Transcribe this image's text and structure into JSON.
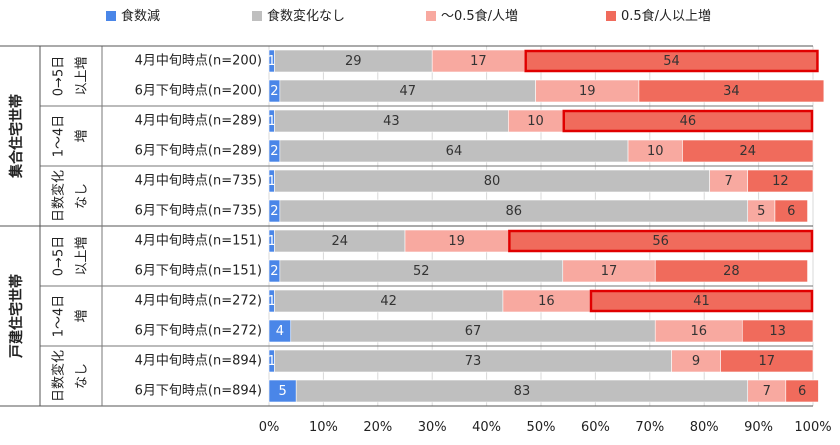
{
  "chart_data": {
    "type": "bar",
    "stacked": true,
    "orientation": "horizontal",
    "legend_position": "top",
    "xlim": [
      0,
      100
    ],
    "xticks": [
      "0%",
      "10%",
      "20%",
      "30%",
      "40%",
      "50%",
      "60%",
      "70%",
      "80%",
      "90%",
      "100%"
    ],
    "series": [
      {
        "name": "食数減",
        "color": "#4a86e8"
      },
      {
        "name": "食数変化なし",
        "color": "#bfbfbf"
      },
      {
        "name": "～0.5食/人増",
        "color": "#f8a9a0"
      },
      {
        "name": "0.5食/人以上増",
        "color": "#f06b5c"
      }
    ],
    "groups": [
      {
        "label": "集合住宅世帯",
        "subgroups": [
          {
            "label_lines": [
              "0→5日",
              "以上増"
            ],
            "rows": [
              0,
              1
            ]
          },
          {
            "label_lines": [
              "1～4日",
              "増"
            ],
            "rows": [
              2,
              3
            ]
          },
          {
            "label_lines": [
              "日数変化",
              "なし"
            ],
            "rows": [
              4,
              5
            ]
          }
        ]
      },
      {
        "label": "戸建住宅世帯",
        "subgroups": [
          {
            "label_lines": [
              "0→5日",
              "以上増"
            ],
            "rows": [
              6,
              7
            ]
          },
          {
            "label_lines": [
              "1～4日",
              "増"
            ],
            "rows": [
              8,
              9
            ]
          },
          {
            "label_lines": [
              "日数変化",
              "なし"
            ],
            "rows": [
              10,
              11
            ]
          }
        ]
      }
    ],
    "rows": [
      {
        "label": "4月中旬時点(n=200)",
        "values": [
          1,
          29,
          17,
          54
        ],
        "highlight": true
      },
      {
        "label": "6月下旬時点(n=200)",
        "values": [
          2,
          47,
          19,
          34
        ],
        "highlight": false
      },
      {
        "label": "4月中旬時点(n=289)",
        "values": [
          1,
          43,
          10,
          46
        ],
        "highlight": true
      },
      {
        "label": "6月下旬時点(n=289)",
        "values": [
          2,
          64,
          10,
          24
        ],
        "highlight": false
      },
      {
        "label": "4月中旬時点(n=735)",
        "values": [
          1,
          80,
          7,
          12
        ],
        "highlight": false
      },
      {
        "label": "6月下旬時点(n=735)",
        "values": [
          2,
          86,
          5,
          6
        ],
        "highlight": false
      },
      {
        "label": "4月中旬時点(n=151)",
        "values": [
          1,
          24,
          19,
          56
        ],
        "highlight": true
      },
      {
        "label": "6月下旬時点(n=151)",
        "values": [
          2,
          52,
          17,
          28
        ],
        "highlight": false
      },
      {
        "label": "4月中旬時点(n=272)",
        "values": [
          1,
          42,
          16,
          41
        ],
        "highlight": true
      },
      {
        "label": "6月下旬時点(n=272)",
        "values": [
          4,
          67,
          16,
          13
        ],
        "highlight": false
      },
      {
        "label": "4月中旬時点(n=894)",
        "values": [
          1,
          73,
          9,
          17
        ],
        "highlight": false
      },
      {
        "label": "6月下旬時点(n=894)",
        "values": [
          5,
          83,
          7,
          6
        ],
        "highlight": false
      }
    ]
  }
}
